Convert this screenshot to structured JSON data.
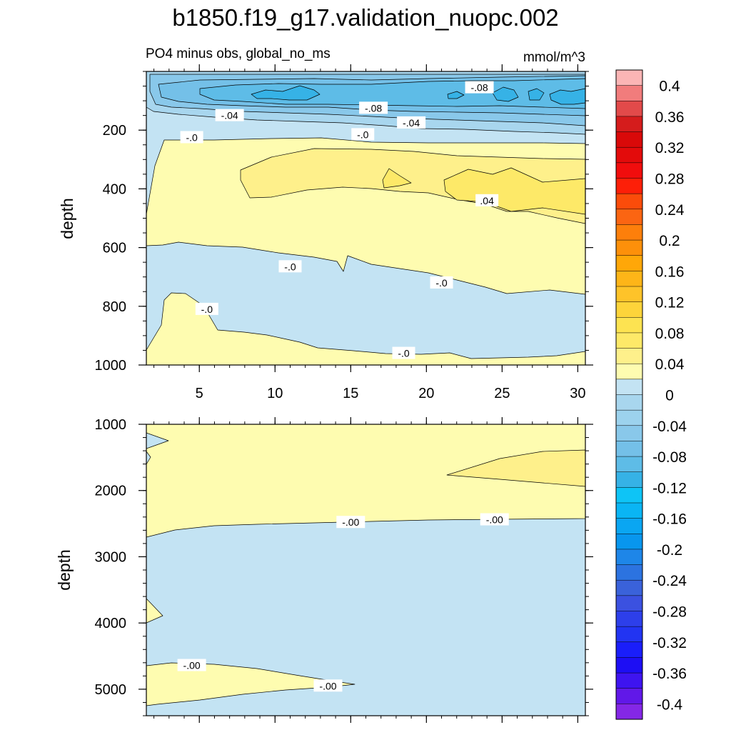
{
  "chart_data": [
    {
      "type": "contour",
      "title": "b1850.f19_g17.validation_nuopc.002",
      "subtitle_left": "PO4 minus obs, global_no_ms",
      "subtitle_right": "mmol/m^3",
      "xlabel": "",
      "ylabel": "depth",
      "xlim": [
        1.5,
        30.5
      ],
      "ylim": [
        1000,
        0
      ],
      "x_ticks": [
        5,
        10,
        15,
        20,
        25,
        30
      ],
      "x_tick_labels": [
        "5",
        "10",
        "15",
        "20",
        "25",
        "30"
      ],
      "y_ticks": [
        200,
        400,
        600,
        800,
        1000
      ],
      "y_tick_labels": [
        "200",
        "400",
        "600",
        "800",
        "1000"
      ],
      "contour_labels": [
        {
          "text": "-.08",
          "x": 23.5,
          "depth": 55
        },
        {
          "text": "-.08",
          "x": 16.5,
          "depth": 125
        },
        {
          "text": "-.04",
          "x": 7.0,
          "depth": 150
        },
        {
          "text": "-.04",
          "x": 19.0,
          "depth": 175
        },
        {
          "text": "-.0",
          "x": 4.5,
          "depth": 225
        },
        {
          "text": "-.0",
          "x": 15.8,
          "depth": 215
        },
        {
          "text": ".04",
          "x": 24.0,
          "depth": 440
        },
        {
          "text": "-.0",
          "x": 11.0,
          "depth": 665
        },
        {
          "text": "-.0",
          "x": 21.0,
          "depth": 720
        },
        {
          "text": "-.0",
          "x": 5.5,
          "depth": 810
        },
        {
          "text": "-.0",
          "x": 18.5,
          "depth": 960
        }
      ],
      "regions": [
        {
          "range": "0 to 0.02",
          "color": "#fefcb0",
          "location": "roughly 230-600 m and deep patches near 800-1000 m"
        },
        {
          "range": "0.02 to 0.04",
          "color": "#fef08b",
          "location": "core 300-490 m from x=8 to 30"
        },
        {
          "range": "0.04 to 0.06",
          "color": "#fde968",
          "location": "x=22-30 near 400-440 m"
        },
        {
          "range": "-0.02 to 0",
          "color": "#c3e3f3",
          "location": "upper 230 m rim and 600-1000 m band"
        },
        {
          "range": "-0.04 to -0.02",
          "color": "#a8d6ee",
          "location": "100-190 m"
        },
        {
          "range": "-0.06 to -0.04",
          "color": "#89c8ea",
          "location": "50-150 m"
        },
        {
          "range": "-0.08 to -0.06",
          "color": "#5ebce7",
          "location": "60-120 m x=8-30"
        },
        {
          "range": "-0.10 to -0.08",
          "color": "#36b2e6",
          "location": "small cores near 80 m"
        }
      ]
    },
    {
      "type": "contour",
      "subtitle_left": "",
      "xlabel": "",
      "ylabel": "depth",
      "xlim": [
        1.5,
        30.5
      ],
      "ylim": [
        5400,
        1000
      ],
      "x_ticks": [
        5,
        10,
        15,
        20,
        25,
        30
      ],
      "x_tick_labels": [],
      "y_ticks": [
        1000,
        2000,
        3000,
        4000,
        5000
      ],
      "y_tick_labels": [
        "1000",
        "2000",
        "3000",
        "4000",
        "5000"
      ],
      "contour_labels": [
        {
          "text": "-.00",
          "x": 15.0,
          "depth": 2480
        },
        {
          "text": "-.00",
          "x": 24.5,
          "depth": 2440
        },
        {
          "text": "-.00",
          "x": 4.5,
          "depth": 4640
        },
        {
          "text": "-.00",
          "x": 13.5,
          "depth": 4950
        }
      ],
      "regions": [
        {
          "range": "0 to 0.02",
          "color": "#fefcb0",
          "location": "1000-2500 m and 4580-5220 m wedge"
        },
        {
          "range": "0.02 to 0.04",
          "color": "#fef08b",
          "location": "x=21-30 near 1400-1900 m"
        },
        {
          "range": "-0.02 to 0",
          "color": "#c3e3f3",
          "location": "2500-5400 m"
        }
      ]
    }
  ],
  "colorbar": {
    "labels": [
      "0.4",
      "0.36",
      "0.32",
      "0.28",
      "0.24",
      "0.2",
      "0.16",
      "0.12",
      "0.08",
      "0.04",
      "0",
      "-0.04",
      "-0.08",
      "-0.12",
      "-0.16",
      "-0.2",
      "-0.24",
      "-0.28",
      "-0.32",
      "-0.36",
      "-0.4"
    ],
    "colors": [
      "#fbb5b5",
      "#f17c7c",
      "#e24a4a",
      "#d51c1c",
      "#d90909",
      "#e30b0b",
      "#f10d0d",
      "#fd1f08",
      "#fb4c0a",
      "#fb6512",
      "#fd7f0b",
      "#fd900a",
      "#ffa708",
      "#feb518",
      "#fec329",
      "#fdd43a",
      "#fde351",
      "#fde968",
      "#fef08b",
      "#fefcb0",
      "#c3e3f3",
      "#a8d6ee",
      "#9cd2ed",
      "#89c8ea",
      "#74c0e8",
      "#5ebce7",
      "#36b2e6",
      "#0ec4f6",
      "#0ab5f4",
      "#0aa6f2",
      "#0896ee",
      "#1e86e8",
      "#2c73e0",
      "#3a62da",
      "#3b51e0",
      "#2d3fea",
      "#2234f2",
      "#1a1efa",
      "#1d0ef4",
      "#3e14f0",
      "#6118e8",
      "#8427e6"
    ]
  }
}
